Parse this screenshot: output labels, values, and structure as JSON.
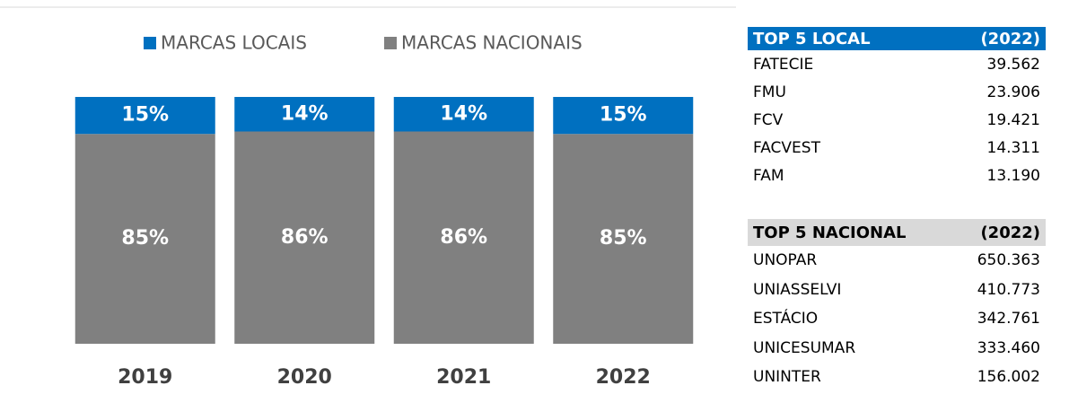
{
  "chart_data": {
    "type": "stacked_bar",
    "categories": [
      "2019",
      "2020",
      "2021",
      "2022"
    ],
    "series": [
      {
        "name": "MARCAS LOCAIS",
        "color": "#0070c0",
        "values": [
          15,
          14,
          14,
          15
        ],
        "value_labels": [
          "15%",
          "14%",
          "14%",
          "15%"
        ]
      },
      {
        "name": "MARCAS NACIONAIS",
        "color": "#808080",
        "values": [
          85,
          86,
          86,
          85
        ],
        "value_labels": [
          "85%",
          "86%",
          "86%",
          "85%"
        ]
      }
    ],
    "ylim": [
      0,
      100
    ],
    "grid": false,
    "legend": "top"
  },
  "tables": [
    {
      "header": [
        "TOP 5 LOCAL",
        "(2022)"
      ],
      "header_color": "#0070c0",
      "header_text_color": "#ffffff",
      "rows": [
        [
          "FATECIE",
          "39.562"
        ],
        [
          "FMU",
          "23.906"
        ],
        [
          "FCV",
          "19.421"
        ],
        [
          "FACVEST",
          "14.311"
        ],
        [
          "FAM",
          "13.190"
        ]
      ]
    },
    {
      "header": [
        "TOP 5 NACIONAL",
        "(2022)"
      ],
      "header_color": "#d9d9d9",
      "header_text_color": "#000000",
      "rows": [
        [
          "UNOPAR",
          "650.363"
        ],
        [
          "UNIASSELVI",
          "410.773"
        ],
        [
          "ESTÁCIO",
          "342.761"
        ],
        [
          "UNICESUMAR",
          "333.460"
        ],
        [
          "UNINTER",
          "156.002"
        ]
      ]
    }
  ]
}
